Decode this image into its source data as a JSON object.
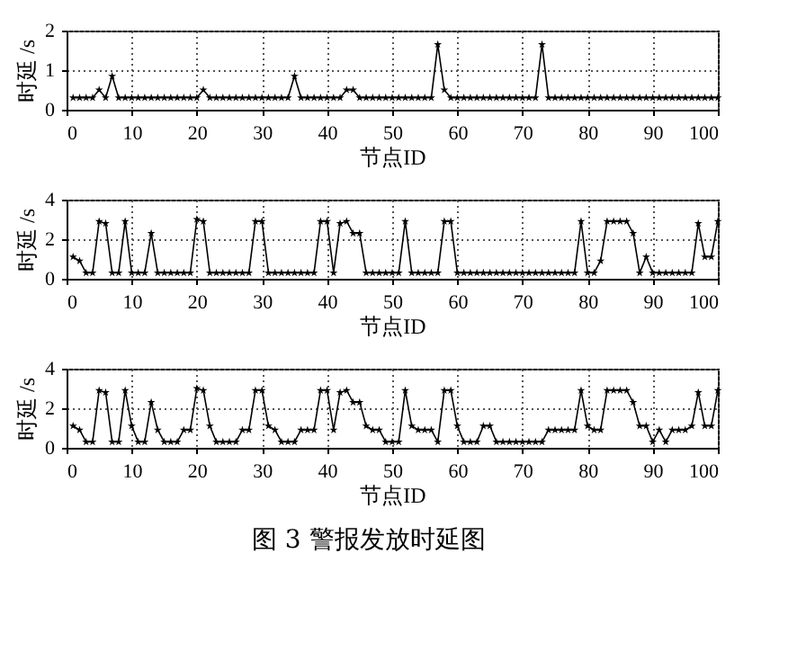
{
  "chart_data": [
    {
      "type": "line",
      "xlabel": "节点ID",
      "ylabel": "时延 /s",
      "xlim": [
        0,
        100
      ],
      "xticks": [
        0,
        10,
        20,
        30,
        40,
        50,
        60,
        70,
        80,
        90,
        100
      ],
      "ylim": [
        0,
        2
      ],
      "yticks": [
        0,
        1,
        2
      ],
      "grid": true,
      "marker": "star",
      "x": [
        1,
        2,
        3,
        4,
        5,
        6,
        7,
        8,
        9,
        10,
        11,
        12,
        13,
        14,
        15,
        16,
        17,
        18,
        19,
        20,
        21,
        22,
        23,
        24,
        25,
        26,
        27,
        28,
        29,
        30,
        31,
        32,
        33,
        34,
        35,
        36,
        37,
        38,
        39,
        40,
        41,
        42,
        43,
        44,
        45,
        46,
        47,
        48,
        49,
        50,
        51,
        52,
        53,
        54,
        55,
        56,
        57,
        58,
        59,
        60,
        61,
        62,
        63,
        64,
        65,
        66,
        67,
        68,
        69,
        70,
        71,
        72,
        73,
        74,
        75,
        76,
        77,
        78,
        79,
        80,
        81,
        82,
        83,
        84,
        85,
        86,
        87,
        88,
        89,
        90,
        91,
        92,
        93,
        94,
        95,
        96,
        97,
        98,
        99,
        100
      ],
      "series": [
        {
          "color": "#000000",
          "values": [
            0.3,
            0.3,
            0.3,
            0.3,
            0.5,
            0.3,
            0.85,
            0.3,
            0.3,
            0.3,
            0.3,
            0.3,
            0.3,
            0.3,
            0.3,
            0.3,
            0.3,
            0.3,
            0.3,
            0.3,
            0.5,
            0.3,
            0.3,
            0.3,
            0.3,
            0.3,
            0.3,
            0.3,
            0.3,
            0.3,
            0.3,
            0.3,
            0.3,
            0.3,
            0.85,
            0.3,
            0.3,
            0.3,
            0.3,
            0.3,
            0.3,
            0.3,
            0.5,
            0.5,
            0.3,
            0.3,
            0.3,
            0.3,
            0.3,
            0.3,
            0.3,
            0.3,
            0.3,
            0.3,
            0.3,
            0.3,
            1.65,
            0.5,
            0.3,
            0.3,
            0.3,
            0.3,
            0.3,
            0.3,
            0.3,
            0.3,
            0.3,
            0.3,
            0.3,
            0.3,
            0.3,
            0.3,
            1.65,
            0.3,
            0.3,
            0.3,
            0.3,
            0.3,
            0.3,
            0.3,
            0.3,
            0.3,
            0.3,
            0.3,
            0.3,
            0.3,
            0.3,
            0.3,
            0.3,
            0.3,
            0.3,
            0.3,
            0.3,
            0.3,
            0.3,
            0.3,
            0.3,
            0.3,
            0.3,
            0.3
          ]
        }
      ]
    },
    {
      "type": "line",
      "xlabel": "节点ID",
      "ylabel": "时延 /s",
      "xlim": [
        0,
        100
      ],
      "xticks": [
        0,
        10,
        20,
        30,
        40,
        50,
        60,
        70,
        80,
        90,
        100
      ],
      "ylim": [
        0,
        4
      ],
      "yticks": [
        0,
        2,
        4
      ],
      "grid": true,
      "marker": "star",
      "x": [
        1,
        2,
        3,
        4,
        5,
        6,
        7,
        8,
        9,
        10,
        11,
        12,
        13,
        14,
        15,
        16,
        17,
        18,
        19,
        20,
        21,
        22,
        23,
        24,
        25,
        26,
        27,
        28,
        29,
        30,
        31,
        32,
        33,
        34,
        35,
        36,
        37,
        38,
        39,
        40,
        41,
        42,
        43,
        44,
        45,
        46,
        47,
        48,
        49,
        50,
        51,
        52,
        53,
        54,
        55,
        56,
        57,
        58,
        59,
        60,
        61,
        62,
        63,
        64,
        65,
        66,
        67,
        68,
        69,
        70,
        71,
        72,
        73,
        74,
        75,
        76,
        77,
        78,
        79,
        80,
        81,
        82,
        83,
        84,
        85,
        86,
        87,
        88,
        89,
        90,
        91,
        92,
        93,
        94,
        95,
        96,
        97,
        98,
        99,
        100
      ],
      "series": [
        {
          "color": "#000000",
          "values": [
            1.1,
            0.9,
            0.3,
            0.3,
            2.9,
            2.8,
            0.3,
            0.3,
            2.9,
            0.3,
            0.3,
            0.3,
            2.3,
            0.3,
            0.3,
            0.3,
            0.3,
            0.3,
            0.3,
            3.0,
            2.9,
            0.3,
            0.3,
            0.3,
            0.3,
            0.3,
            0.3,
            0.3,
            2.9,
            2.9,
            0.3,
            0.3,
            0.3,
            0.3,
            0.3,
            0.3,
            0.3,
            0.3,
            2.9,
            2.9,
            0.3,
            2.8,
            2.9,
            2.3,
            2.3,
            0.3,
            0.3,
            0.3,
            0.3,
            0.3,
            0.3,
            2.9,
            0.3,
            0.3,
            0.3,
            0.3,
            0.3,
            2.9,
            2.9,
            0.3,
            0.3,
            0.3,
            0.3,
            0.3,
            0.3,
            0.3,
            0.3,
            0.3,
            0.3,
            0.3,
            0.3,
            0.3,
            0.3,
            0.3,
            0.3,
            0.3,
            0.3,
            0.3,
            2.9,
            0.3,
            0.3,
            0.9,
            2.9,
            2.9,
            2.9,
            2.9,
            2.3,
            0.3,
            1.1,
            0.3,
            0.3,
            0.3,
            0.3,
            0.3,
            0.3,
            0.3,
            2.8,
            1.1,
            1.1,
            2.9
          ]
        }
      ]
    },
    {
      "type": "line",
      "xlabel": "节点ID",
      "ylabel": "时延 /s",
      "xlim": [
        0,
        100
      ],
      "xticks": [
        0,
        10,
        20,
        30,
        40,
        50,
        60,
        70,
        80,
        90,
        100
      ],
      "ylim": [
        0,
        4
      ],
      "yticks": [
        0,
        2,
        4
      ],
      "grid": true,
      "marker": "star",
      "annotations": [
        "图 3  警报发放时延图"
      ],
      "x": [
        1,
        2,
        3,
        4,
        5,
        6,
        7,
        8,
        9,
        10,
        11,
        12,
        13,
        14,
        15,
        16,
        17,
        18,
        19,
        20,
        21,
        22,
        23,
        24,
        25,
        26,
        27,
        28,
        29,
        30,
        31,
        32,
        33,
        34,
        35,
        36,
        37,
        38,
        39,
        40,
        41,
        42,
        43,
        44,
        45,
        46,
        47,
        48,
        49,
        50,
        51,
        52,
        53,
        54,
        55,
        56,
        57,
        58,
        59,
        60,
        61,
        62,
        63,
        64,
        65,
        66,
        67,
        68,
        69,
        70,
        71,
        72,
        73,
        74,
        75,
        76,
        77,
        78,
        79,
        80,
        81,
        82,
        83,
        84,
        85,
        86,
        87,
        88,
        89,
        90,
        91,
        92,
        93,
        94,
        95,
        96,
        97,
        98,
        99,
        100
      ],
      "series": [
        {
          "color": "#000000",
          "values": [
            1.1,
            0.9,
            0.3,
            0.3,
            2.9,
            2.8,
            0.3,
            0.3,
            2.9,
            1.1,
            0.3,
            0.3,
            2.3,
            0.9,
            0.3,
            0.3,
            0.3,
            0.9,
            0.9,
            3.0,
            2.9,
            1.1,
            0.3,
            0.3,
            0.3,
            0.3,
            0.9,
            0.9,
            2.9,
            2.9,
            1.1,
            0.9,
            0.3,
            0.3,
            0.3,
            0.9,
            0.9,
            0.9,
            2.9,
            2.9,
            0.9,
            2.8,
            2.9,
            2.3,
            2.3,
            1.1,
            0.9,
            0.9,
            0.3,
            0.3,
            0.3,
            2.9,
            1.1,
            0.9,
            0.9,
            0.9,
            0.3,
            2.9,
            2.9,
            1.1,
            0.3,
            0.3,
            0.3,
            1.1,
            1.1,
            0.3,
            0.3,
            0.3,
            0.3,
            0.3,
            0.3,
            0.3,
            0.3,
            0.9,
            0.9,
            0.9,
            0.9,
            0.9,
            2.9,
            1.1,
            0.9,
            0.9,
            2.9,
            2.9,
            2.9,
            2.9,
            2.3,
            1.1,
            1.1,
            0.3,
            0.9,
            0.3,
            0.9,
            0.9,
            0.9,
            1.1,
            2.8,
            1.1,
            1.1,
            2.9
          ]
        }
      ]
    }
  ]
}
